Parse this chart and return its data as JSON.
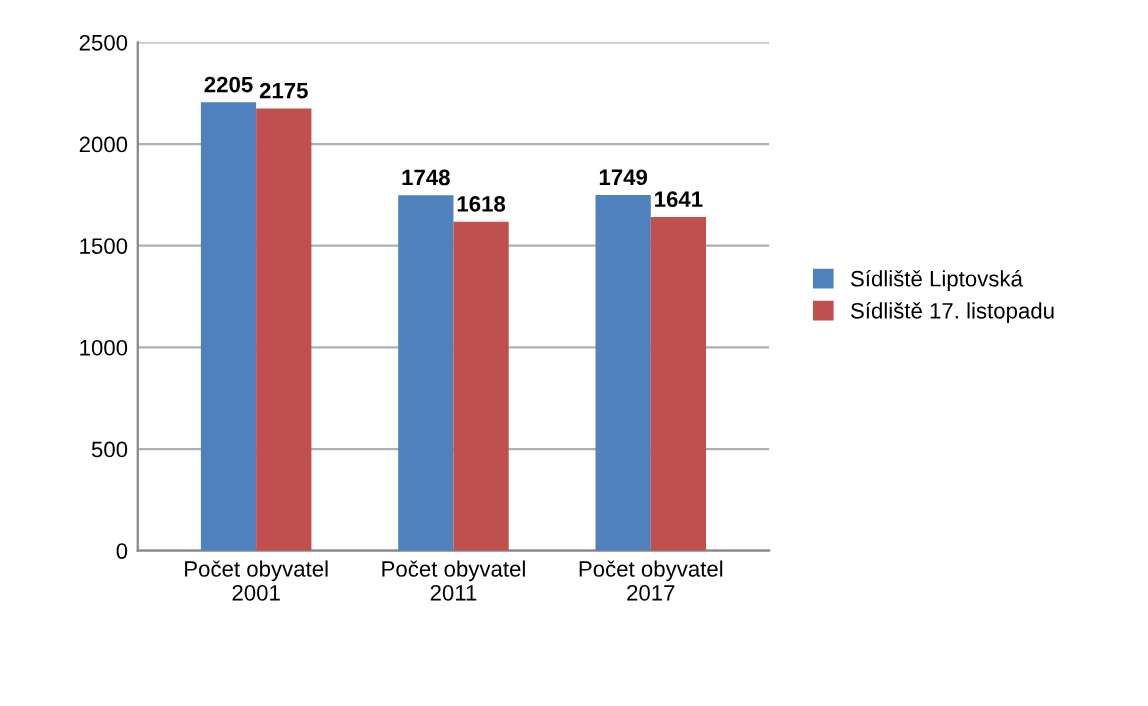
{
  "chart_data": {
    "type": "bar",
    "categories": [
      "Počet obyvatel\n2001",
      "Počet obyvatel\n2011",
      "Počet obyvatel\n2017"
    ],
    "series": [
      {
        "name": "Sídliště Liptovská",
        "color": "#4f81bd",
        "values": [
          2205,
          1748,
          1749
        ]
      },
      {
        "name": "Sídliště 17. listopadu",
        "color": "#c0504d",
        "values": [
          2175,
          1618,
          1641
        ]
      }
    ],
    "ylim": [
      0,
      2500
    ],
    "yticks": [
      0,
      500,
      1000,
      1500,
      2000,
      2500
    ],
    "grid": "y",
    "legend": "right",
    "data_labels": true
  }
}
